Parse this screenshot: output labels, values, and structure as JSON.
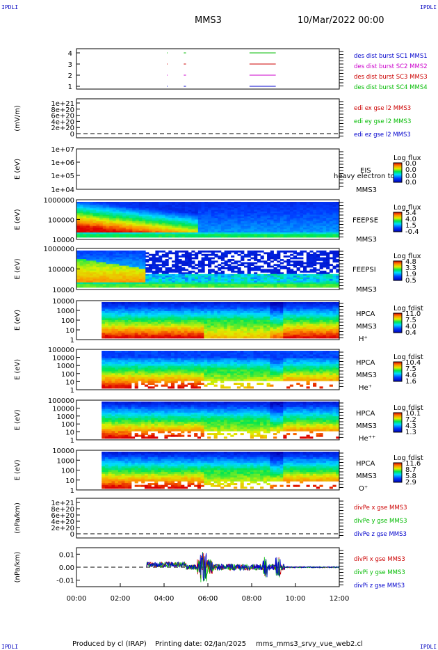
{
  "corners": {
    "tl": "IPDLI",
    "tr": "IPDLI",
    "bl": "IPDLI",
    "br": "IPDLI"
  },
  "header": {
    "spacecraft": "MMS3",
    "date": "10/Mar/2022 00:00"
  },
  "footer": {
    "produced": "Produced by cl (IRAP)",
    "printing": "Printing date: 02/Jan/2025",
    "file": "mms_mms3_srvy_vue_web2.cl"
  },
  "colors": {
    "mms1": "#0000cc",
    "mms2": "#cc00cc",
    "mms3": "#cc0000",
    "mms4": "#00bb00"
  },
  "chart_data": [
    {
      "type": "line",
      "id": "burst",
      "yticks": [
        "4",
        "3",
        "2",
        "1"
      ],
      "series_labels": [
        {
          "text": "des dist burst SC1 MMS1",
          "color": "#0000cc"
        },
        {
          "text": "des dist burst SC2 MMS2",
          "color": "#cc00cc"
        },
        {
          "text": "des dist burst SC3 MMS3",
          "color": "#cc0000"
        },
        {
          "text": "des dist burst SC4 MMS4",
          "color": "#00bb00"
        }
      ],
      "segments_hours": [
        [
          4.9,
          5.0
        ],
        [
          7.9,
          9.1
        ]
      ]
    },
    {
      "type": "line",
      "id": "edi",
      "ylabel": "(mV/m)",
      "yticks": [
        "1e+21",
        "8e+20",
        "6e+20",
        "4e+20",
        "2e+20",
        "0"
      ],
      "series_labels": [
        {
          "text": "edi ex gse l2 MMS3",
          "color": "#cc0000"
        },
        {
          "text": "edi ey gse l2 MMS3",
          "color": "#00bb00"
        },
        {
          "text": "edi ez gse l2 MMS3",
          "color": "#0000cc"
        }
      ]
    },
    {
      "type": "heatmap",
      "id": "eis",
      "ylabel": "E (eV)",
      "yticks": [
        "1e+07",
        "1e+06",
        "1e+05",
        "1e+04"
      ],
      "labels": [
        "EIS",
        "heavy electron tof",
        "MMS3"
      ],
      "cbar_title": "Log flux",
      "cbar_ticks": [
        "0.0",
        "0.0",
        "0.0",
        "0.0"
      ]
    },
    {
      "type": "heatmap",
      "id": "feepse",
      "ylabel": "E (eV)",
      "yticks": [
        "1000000",
        "100000",
        "10000"
      ],
      "labels": [
        "FEEPSE",
        "MMS3"
      ],
      "cbar_title": "Log flux",
      "cbar_ticks": [
        "5.4",
        "4.0",
        "1.5",
        "-0.4"
      ]
    },
    {
      "type": "heatmap",
      "id": "feepsi",
      "ylabel": "E (eV)",
      "yticks": [
        "1000000",
        "100000",
        "10000"
      ],
      "labels": [
        "FEEPSI",
        "MMS3"
      ],
      "cbar_title": "Log flux",
      "cbar_ticks": [
        "4.8",
        "3.3",
        "1.9",
        "0.5"
      ]
    },
    {
      "type": "heatmap",
      "id": "hpca_h",
      "ylabel": "E (eV)",
      "yticks": [
        "10000",
        "1000",
        "100",
        "10",
        "1"
      ],
      "labels": [
        "HPCA",
        "MMS3",
        "H⁺"
      ],
      "cbar_title": "Log fdist",
      "cbar_ticks": [
        "11.0",
        "7.5",
        "4.0",
        "0.4"
      ]
    },
    {
      "type": "heatmap",
      "id": "hpca_he",
      "ylabel": "E (eV)",
      "yticks": [
        "100000",
        "10000",
        "1000",
        "100",
        "10",
        "1"
      ],
      "labels": [
        "HPCA",
        "MMS3",
        "He⁺"
      ],
      "cbar_title": "Log fdist",
      "cbar_ticks": [
        "10.4",
        "7.5",
        "4.6",
        "1.6"
      ]
    },
    {
      "type": "heatmap",
      "id": "hpca_hepp",
      "ylabel": "E (eV)",
      "yticks": [
        "100000",
        "10000",
        "1000",
        "100",
        "10",
        "1"
      ],
      "labels": [
        "HPCA",
        "MMS3",
        "He⁺⁺"
      ],
      "cbar_title": "Log fdist",
      "cbar_ticks": [
        "10.1",
        "7.2",
        "4.3",
        "1.3"
      ]
    },
    {
      "type": "heatmap",
      "id": "hpca_o",
      "ylabel": "E (eV)",
      "yticks": [
        "10000",
        "1000",
        "100",
        "10",
        "1"
      ],
      "labels": [
        "HPCA",
        "MMS3",
        "O⁺"
      ],
      "cbar_title": "Log fdist",
      "cbar_ticks": [
        "11.6",
        "8.7",
        "5.8",
        "2.9"
      ]
    },
    {
      "type": "line",
      "id": "divpe",
      "ylabel": "(nPa/km)",
      "yticks": [
        "1e+21",
        "8e+20",
        "6e+20",
        "4e+20",
        "2e+20",
        "0"
      ],
      "series_labels": [
        {
          "text": "divPe x gse MMS3",
          "color": "#cc0000"
        },
        {
          "text": "divPe y gse MMS3",
          "color": "#00bb00"
        },
        {
          "text": "divPe z gse MMS3",
          "color": "#0000cc"
        }
      ]
    },
    {
      "type": "line",
      "id": "divpi",
      "ylabel": "(nPa/km)",
      "yticks": [
        "0.01",
        "0.00",
        "-0.01"
      ],
      "ylim": [
        -0.015,
        0.015
      ],
      "series_labels": [
        {
          "text": "divPi x gse MMS3",
          "color": "#cc0000"
        },
        {
          "text": "divPi y gse MMS3",
          "color": "#00bb00"
        },
        {
          "text": "divPi z gse MMS3",
          "color": "#0000cc"
        }
      ]
    }
  ],
  "xaxis": {
    "ticks": [
      "00:00",
      "02:00",
      "04:00",
      "06:00",
      "08:00",
      "10:00",
      "12:00"
    ],
    "xlim_hours": [
      0,
      12
    ]
  }
}
